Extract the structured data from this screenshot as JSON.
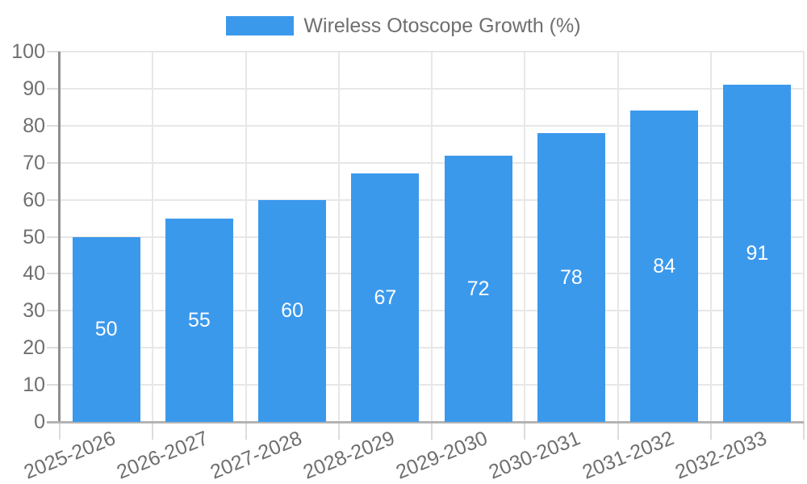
{
  "legend": {
    "label": "Wireless Otoscope Growth (%)"
  },
  "chart_data": {
    "type": "bar",
    "title": "",
    "series_name": "Wireless Otoscope Growth (%)",
    "categories": [
      "2025-2026",
      "2026-2027",
      "2027-2028",
      "2028-2029",
      "2029-2030",
      "2030-2031",
      "2031-2032",
      "2032-2033"
    ],
    "values": [
      50,
      55,
      60,
      67,
      72,
      78,
      84,
      91
    ],
    "value_label_position": "inside-center",
    "xlabel": "",
    "ylabel": "",
    "ylim": [
      0,
      100
    ],
    "yticks": [
      0,
      10,
      20,
      30,
      40,
      50,
      60,
      70,
      80,
      90,
      100
    ],
    "grid": true,
    "legend_position": "top",
    "colors": {
      "bar": "#3b99ec",
      "value_text": "#ffffff",
      "tick_text": "#6f6f6f",
      "grid": "#e7e7e7",
      "x_axis": "#b3b3b3",
      "y_axis": "#8e8e8e"
    }
  }
}
